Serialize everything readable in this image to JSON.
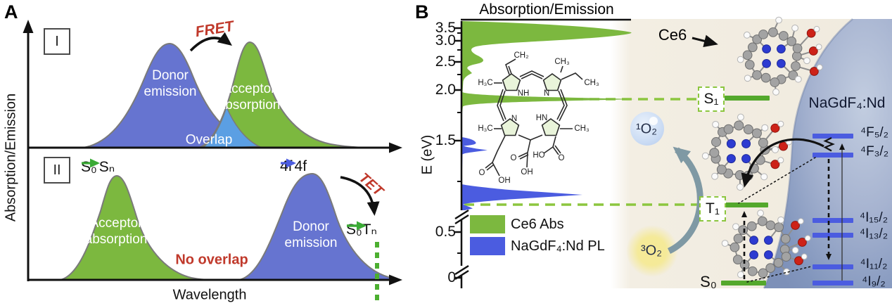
{
  "colors": {
    "green": "#7cb83f",
    "green_bar": "#54a82c",
    "green_dash": "#8cc63f",
    "green_arrow": "#3aaa35",
    "blue_curve": "#6674d0",
    "blue_bar": "#4b5ce0",
    "light_blue": "#5b9fe3",
    "red": "#c0392b",
    "teal_arrow": "#7f99a4",
    "beige": "#f3eee3",
    "sphere_light": "#c2cde0",
    "sphere_mid": "#9dabcb",
    "sphere_dark": "#7d90b8"
  },
  "figure": {
    "panel_a": {
      "label": "A",
      "y_axis": "Absorption/Emission",
      "x_axis": "Wavelength",
      "section_1": {
        "box": "I",
        "fret": "FRET",
        "donor_l1": "Donor",
        "donor_l2": "emission",
        "acceptor_l1": "Acceptor",
        "acceptor_l2": "absorption",
        "overlap": "Overlap"
      },
      "section_2": {
        "box": "II",
        "abs_from": "S₀",
        "abs_to": "Sₙ",
        "acceptor_l1": "Acceptor",
        "acceptor_l2": "absorption",
        "no_overlap": "No overlap",
        "f_from": "4f",
        "f_to": "4f",
        "tet": "TET",
        "tet_from": "S₀",
        "tet_to": "Tₙ",
        "donor_l1": "Donor",
        "donor_l2": "emission"
      }
    },
    "panel_b": {
      "label": "B",
      "title": "Absorption/Emission",
      "y_axis": "E (eV)",
      "ticks": [
        "3.5",
        "3.0",
        "2.5",
        "2.0",
        "1.5",
        "0.5",
        "0"
      ],
      "legend": {
        "abs": "Ce6 Abs",
        "pl": "NaGdF₄:Nd PL"
      },
      "molecule_label": "Ce6",
      "nanoparticle_label": "NaGdF₄:Nd",
      "o2_singlet": "¹O₂",
      "o2_triplet": "³O₂",
      "ce6_levels": {
        "s1": "S₁",
        "t1": "T₁",
        "s0": "S₀"
      },
      "nd_levels": [
        "⁴F₅/₂",
        "⁴F₃/₂",
        "⁴I₁₅/₂",
        "⁴I₁₃/₂",
        "⁴I₁₁/₂",
        "⁴I₉/₂"
      ],
      "structure_labels": [
        "CH₂",
        "CH₃",
        "H₃C",
        "CH₃",
        "NH",
        "N",
        "N",
        "HN",
        "H₃C",
        "CH₃",
        "HO",
        "O",
        "O",
        "OH",
        "O",
        "OH"
      ]
    }
  },
  "chart_data": {
    "type": "area",
    "note": "Spectra plotted sideways: intensity extends right vs energy on vertical axis; axis has two breaks",
    "ylabel": "E (eV)",
    "title": "Absorption/Emission",
    "yticks": [
      3.5,
      3.0,
      2.5,
      2.0,
      1.5,
      0.5,
      0
    ],
    "axis_breaks_between_eV": [
      [
        0.75,
        0.6
      ],
      [
        0.15,
        0.05
      ]
    ],
    "legend_position": "lower-left",
    "series": [
      {
        "name": "Ce6 Abs",
        "color": "#7cb83f",
        "peaks_eV": [
          {
            "e": 3.1,
            "rel_intensity": 1.0
          },
          {
            "e": 2.5,
            "rel_intensity": 0.2
          },
          {
            "e": 1.9,
            "rel_intensity": 1.0
          }
        ]
      },
      {
        "name": "NaGdF₄:Nd PL",
        "color": "#4b5ce0",
        "peaks_eV": [
          {
            "e": 1.45,
            "rel_intensity": 0.1
          },
          {
            "e": 1.4,
            "rel_intensity": 0.15
          },
          {
            "e": 1.17,
            "rel_intensity": 0.7
          }
        ]
      }
    ],
    "energy_levels": {
      "Ce6": [
        {
          "label": "S₁",
          "eV": 1.9
        },
        {
          "label": "T₁",
          "eV": 1.3
        },
        {
          "label": "S₀",
          "eV": 0
        }
      ],
      "NaGdF4_Nd": [
        {
          "label": "⁴F₅/₂",
          "eV": 1.55
        },
        {
          "label": "⁴F₃/₂",
          "eV": 1.4
        },
        {
          "label": "⁴I₁₅/₂",
          "eV": 0.75
        },
        {
          "label": "⁴I₁₃/₂",
          "eV": 0.49
        },
        {
          "label": "⁴I₁₁/₂",
          "eV": 0.24
        },
        {
          "label": "⁴I₉/₂",
          "eV": 0
        }
      ]
    }
  }
}
